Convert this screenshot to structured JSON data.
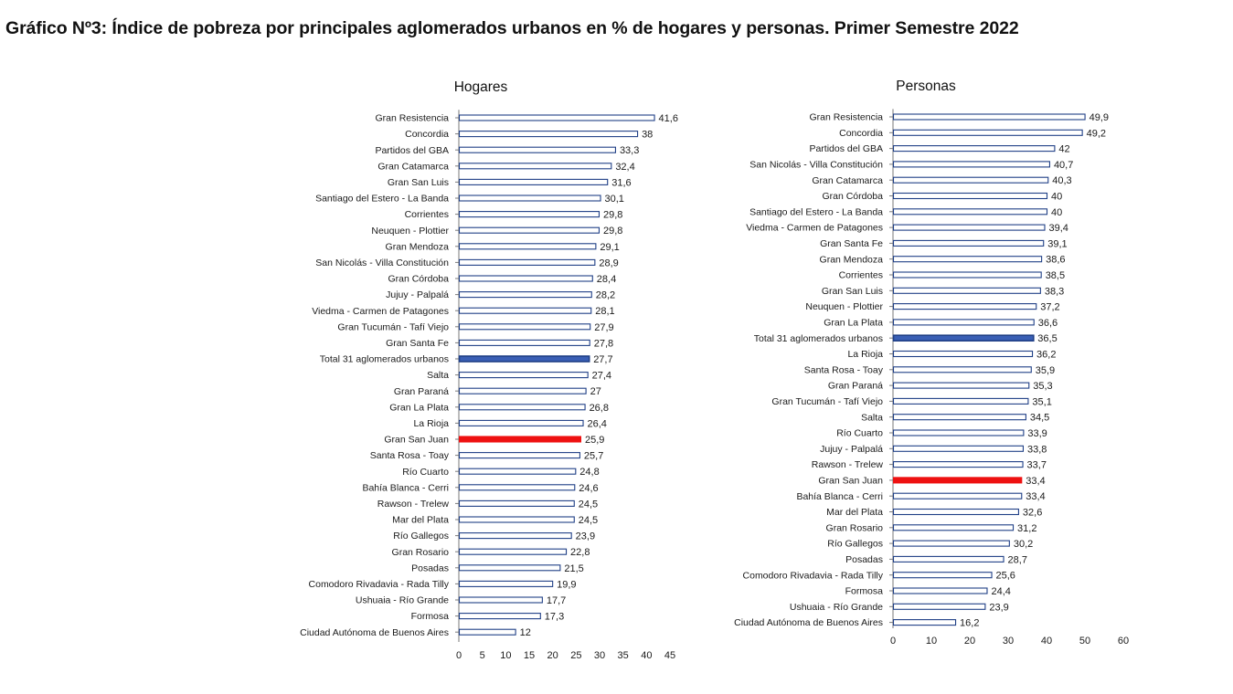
{
  "title": "Gráfico Nº3: Índice de pobreza por principales aglomerados urbanos en % de hogares y personas. Primer Semestre 2022",
  "colors": {
    "bar_fill": "#ffffff",
    "bar_border": "#1f3f86",
    "bar_highlight": "#ee1111",
    "bar_total": "#3a5fb5"
  },
  "chart_data": [
    {
      "type": "bar",
      "orientation": "horizontal",
      "title": "Hogares",
      "xlim": [
        0,
        45
      ],
      "xticks": [
        0,
        5,
        10,
        15,
        20,
        25,
        30,
        35,
        40,
        45
      ],
      "highlight": "Gran San Juan",
      "total": "Total 31 aglomerados urbanos",
      "categories": [
        "Gran Resistencia",
        "Concordia",
        "Partidos del GBA",
        "Gran Catamarca",
        "Gran San Luis",
        "Santiago del Estero - La Banda",
        "Corrientes",
        "Neuquen - Plottier",
        "Gran Mendoza",
        "San Nicolás - Villa Constitución",
        "Gran Córdoba",
        "Jujuy - Palpalá",
        "Viedma - Carmen de Patagones",
        "Gran Tucumán - Tafí Viejo",
        "Gran Santa Fe",
        "Total 31 aglomerados urbanos",
        "Salta",
        "Gran Paraná",
        "Gran La Plata",
        "La Rioja",
        "Gran San Juan",
        "Santa Rosa - Toay",
        "Río Cuarto",
        "Bahía Blanca - Cerri",
        "Rawson - Trelew",
        "Mar del Plata",
        "Río Gallegos",
        "Gran Rosario",
        "Posadas",
        "Comodoro Rivadavia - Rada Tilly",
        "Ushuaia - Río Grande",
        "Formosa",
        "Ciudad Autónoma de Buenos Aires"
      ],
      "values": [
        41.6,
        38,
        33.3,
        32.4,
        31.6,
        30.1,
        29.8,
        29.8,
        29.1,
        28.9,
        28.4,
        28.2,
        28.1,
        27.9,
        27.8,
        27.7,
        27.4,
        27,
        26.8,
        26.4,
        25.9,
        25.7,
        24.8,
        24.6,
        24.5,
        24.5,
        23.9,
        22.8,
        21.5,
        19.9,
        17.7,
        17.3,
        12
      ],
      "value_labels": [
        "41,6",
        "38",
        "33,3",
        "32,4",
        "31,6",
        "30,1",
        "29,8",
        "29,8",
        "29,1",
        "28,9",
        "28,4",
        "28,2",
        "28,1",
        "27,9",
        "27,8",
        "27,7",
        "27,4",
        "27",
        "26,8",
        "26,4",
        "25,9",
        "25,7",
        "24,8",
        "24,6",
        "24,5",
        "24,5",
        "23,9",
        "22,8",
        "21,5",
        "19,9",
        "17,7",
        "17,3",
        "12"
      ]
    },
    {
      "type": "bar",
      "orientation": "horizontal",
      "title": "Personas",
      "xlim": [
        0,
        60
      ],
      "xticks": [
        0,
        10,
        20,
        30,
        40,
        50,
        60
      ],
      "highlight": "Gran San Juan",
      "total": "Total 31 aglomerados urbanos",
      "categories": [
        "Gran Resistencia",
        "Concordia",
        "Partidos del GBA",
        "San Nicolás - Villa Constitución",
        "Gran Catamarca",
        "Gran Córdoba",
        "Santiago del Estero - La Banda",
        "Viedma - Carmen de Patagones",
        "Gran Santa Fe",
        "Gran Mendoza",
        "Corrientes",
        "Gran San Luis",
        "Neuquen - Plottier",
        "Gran La Plata",
        "Total 31 aglomerados urbanos",
        "La Rioja",
        "Santa Rosa - Toay",
        "Gran Paraná",
        "Gran Tucumán - Tafí Viejo",
        "Salta",
        "Río Cuarto",
        "Jujuy - Palpalá",
        "Rawson - Trelew",
        "Gran San Juan",
        "Bahía Blanca - Cerri",
        "Mar del Plata",
        "Gran Rosario",
        "Río Gallegos",
        "Posadas",
        "Comodoro Rivadavia - Rada Tilly",
        "Formosa",
        "Ushuaia - Río Grande",
        "Ciudad Autónoma de Buenos Aires"
      ],
      "values": [
        49.9,
        49.2,
        42,
        40.7,
        40.3,
        40,
        40,
        39.4,
        39.1,
        38.6,
        38.5,
        38.3,
        37.2,
        36.6,
        36.5,
        36.2,
        35.9,
        35.3,
        35.1,
        34.5,
        33.9,
        33.8,
        33.7,
        33.4,
        33.4,
        32.6,
        31.2,
        30.2,
        28.7,
        25.6,
        24.4,
        23.9,
        16.2
      ],
      "value_labels": [
        "49,9",
        "49,2",
        "42",
        "40,7",
        "40,3",
        "40",
        "40",
        "39,4",
        "39,1",
        "38,6",
        "38,5",
        "38,3",
        "37,2",
        "36,6",
        "36,5",
        "36,2",
        "35,9",
        "35,3",
        "35,1",
        "34,5",
        "33,9",
        "33,8",
        "33,7",
        "33,4",
        "33,4",
        "32,6",
        "31,2",
        "30,2",
        "28,7",
        "25,6",
        "24,4",
        "23,9",
        "16,2"
      ]
    }
  ]
}
